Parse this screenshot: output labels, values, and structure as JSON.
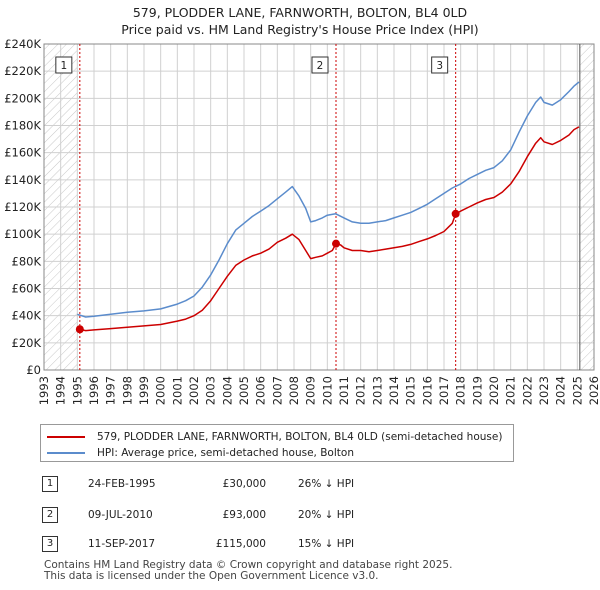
{
  "chart_data": {
    "type": "line",
    "title": "579, PLODDER LANE, FARNWORTH, BOLTON, BL4 0LD",
    "subtitle": "Price paid vs. HM Land Registry's House Price Index (HPI)",
    "xlim": [
      1993,
      2026
    ],
    "ylim": [
      0,
      240000
    ],
    "y_ticks": [
      0,
      20000,
      40000,
      60000,
      80000,
      100000,
      120000,
      140000,
      160000,
      180000,
      200000,
      220000,
      240000
    ],
    "y_tick_labels": [
      "£0",
      "£20K",
      "£40K",
      "£60K",
      "£80K",
      "£100K",
      "£120K",
      "£140K",
      "£160K",
      "£180K",
      "£200K",
      "£220K",
      "£240K"
    ],
    "x_ticks": [
      1993,
      1994,
      1995,
      1996,
      1997,
      1998,
      1999,
      2000,
      2001,
      2002,
      2003,
      2004,
      2005,
      2006,
      2007,
      2008,
      2009,
      2010,
      2011,
      2012,
      2013,
      2014,
      2015,
      2016,
      2017,
      2018,
      2019,
      2020,
      2021,
      2022,
      2023,
      2024,
      2025,
      2026
    ],
    "x_tick_labels": [
      "1993",
      "1994",
      "1995",
      "1996",
      "1997",
      "1998",
      "1999",
      "2000",
      "2001",
      "2002",
      "2003",
      "2004",
      "2005",
      "2006",
      "2007",
      "2008",
      "2009",
      "2010",
      "2011",
      "2012",
      "2013",
      "2014",
      "2015",
      "2016",
      "2017",
      "2018",
      "2019",
      "2020",
      "2021",
      "2022",
      "2023",
      "2024",
      "2025",
      "2026"
    ],
    "grid": true,
    "hatched_ranges": [
      [
        1993,
        1995.0
      ],
      [
        2025.15,
        2026
      ]
    ],
    "series": [
      {
        "name": "579, PLODDER LANE, FARNWORTH, BOLTON, BL4 0LD (semi-detached house)",
        "color": "#cc0000",
        "x": [
          1995.15,
          1995.5,
          1996,
          1997,
          1998,
          1999,
          2000,
          2001,
          2001.5,
          2002,
          2002.5,
          2003,
          2003.5,
          2004,
          2004.5,
          2005,
          2005.5,
          2006,
          2006.5,
          2007,
          2007.5,
          2007.9,
          2008.3,
          2008.7,
          2009,
          2009.3,
          2009.7,
          2010,
          2010.3,
          2010.52,
          2010.8,
          2011,
          2011.5,
          2012,
          2012.5,
          2013,
          2013.5,
          2014,
          2014.5,
          2015,
          2015.5,
          2016,
          2016.5,
          2017,
          2017.5,
          2017.7,
          2018,
          2018.5,
          2019,
          2019.5,
          2020,
          2020.5,
          2021,
          2021.5,
          2022,
          2022.5,
          2022.8,
          2023,
          2023.5,
          2024,
          2024.5,
          2024.8,
          2025.1
        ],
        "y": [
          30000,
          29000,
          29500,
          30500,
          31500,
          32500,
          33500,
          36000,
          37500,
          40000,
          44000,
          51000,
          60000,
          69000,
          77000,
          81000,
          84000,
          86000,
          89000,
          94000,
          97000,
          100000,
          96000,
          88000,
          82000,
          83000,
          84000,
          86000,
          88000,
          93000,
          92000,
          90000,
          88000,
          88000,
          87000,
          88000,
          89000,
          90000,
          91000,
          92500,
          94500,
          96500,
          99000,
          102000,
          108000,
          115000,
          117000,
          120000,
          123000,
          125500,
          127000,
          131000,
          137000,
          146000,
          157000,
          167000,
          171000,
          168000,
          166000,
          169000,
          173000,
          177000,
          179000
        ]
      },
      {
        "name": "HPI: Average price, semi-detached house, Bolton",
        "color": "#5b8ccc",
        "x": [
          1995.0,
          1995.5,
          1996,
          1997,
          1998,
          1999,
          2000,
          2001,
          2001.5,
          2002,
          2002.5,
          2003,
          2003.5,
          2004,
          2004.5,
          2005,
          2005.5,
          2006,
          2006.5,
          2007,
          2007.5,
          2007.9,
          2008.3,
          2008.7,
          2009,
          2009.3,
          2009.7,
          2010,
          2010.5,
          2011,
          2011.5,
          2012,
          2012.5,
          2013,
          2013.5,
          2014,
          2014.5,
          2015,
          2015.5,
          2016,
          2016.5,
          2017,
          2017.5,
          2018,
          2018.5,
          2019,
          2019.5,
          2020,
          2020.5,
          2021,
          2021.5,
          2022,
          2022.5,
          2022.8,
          2023,
          2023.5,
          2024,
          2024.5,
          2024.8,
          2025.1
        ],
        "y": [
          41000,
          39000,
          39500,
          41000,
          42500,
          43500,
          45000,
          48500,
          51000,
          54500,
          61000,
          70000,
          81000,
          93000,
          103000,
          108000,
          113000,
          117000,
          121000,
          126000,
          131000,
          135000,
          128000,
          119000,
          109000,
          110000,
          112000,
          114000,
          115000,
          112000,
          109000,
          108000,
          108000,
          109000,
          110000,
          112000,
          114000,
          116000,
          119000,
          122000,
          126000,
          130000,
          134000,
          137000,
          141000,
          144000,
          147000,
          149000,
          154000,
          162000,
          175000,
          187000,
          197000,
          201000,
          197000,
          195000,
          199000,
          205000,
          209000,
          212000
        ]
      }
    ],
    "sale_markers": [
      {
        "label": "1",
        "x": 1995.15,
        "y": 30000
      },
      {
        "label": "2",
        "x": 2010.52,
        "y": 93000
      },
      {
        "label": "3",
        "x": 2017.7,
        "y": 115000
      }
    ]
  },
  "legend": {
    "property_label": "579, PLODDER LANE, FARNWORTH, BOLTON, BL4 0LD (semi-detached house)",
    "hpi_label": "HPI: Average price, semi-detached house, Bolton"
  },
  "sales": [
    {
      "num": "1",
      "date": "24-FEB-1995",
      "price": "£30,000",
      "hpi": "26% ↓ HPI"
    },
    {
      "num": "2",
      "date": "09-JUL-2010",
      "price": "£93,000",
      "hpi": "20% ↓ HPI"
    },
    {
      "num": "3",
      "date": "11-SEP-2017",
      "price": "£115,000",
      "hpi": "15% ↓ HPI"
    }
  ],
  "footer": {
    "line1": "Contains HM Land Registry data © Crown copyright and database right 2025.",
    "line2": "This data is licensed under the Open Government Licence v3.0."
  },
  "colors": {
    "property_line": "#cc0000",
    "hpi_line": "#5b8ccc",
    "grid": "#d0d0d0",
    "marker_line": "#cc0000"
  }
}
